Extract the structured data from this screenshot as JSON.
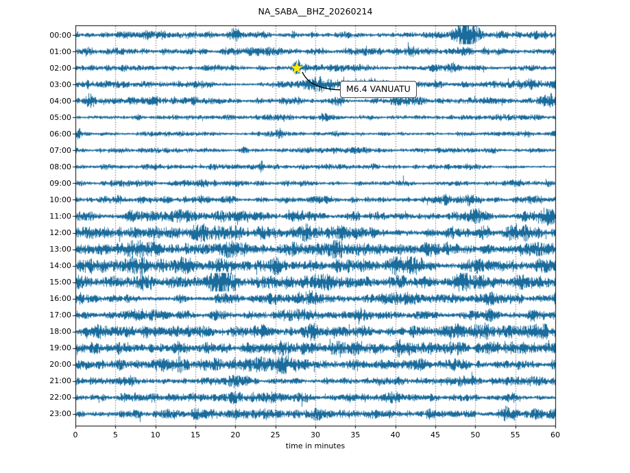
{
  "title": "NA_SABA__BHZ_20260214",
  "x_axis": {
    "label": "time in minutes",
    "ticks": [
      0,
      5,
      10,
      15,
      20,
      25,
      30,
      35,
      40,
      45,
      50,
      55,
      60
    ],
    "grid_minutes": [
      5,
      10,
      15,
      20,
      25,
      30,
      35,
      40,
      45,
      50,
      55
    ],
    "range": [
      0,
      60
    ]
  },
  "annotation": {
    "text": "M6.4 VANUATU",
    "row_hour": "02:00",
    "minute": 27.7,
    "marker": "star"
  },
  "colors": {
    "trace": "#1a6c9c",
    "grid": "#333333",
    "axis": "#000000",
    "star": "#ffe60a",
    "arrow": "#000000",
    "annotation_border": "#444444",
    "annotation_bg": "#ffffff",
    "text": "#000000"
  },
  "chart_data": {
    "type": "line",
    "subtype": "seismogram-dayplot",
    "title": "NA_SABA__BHZ_20260214",
    "station": "NA_SABA__BHZ",
    "date": "20260214",
    "xlabel": "time in minutes",
    "xlim": [
      0,
      60
    ],
    "x_ticks": [
      0,
      5,
      10,
      15,
      20,
      25,
      30,
      35,
      40,
      45,
      50,
      55,
      60
    ],
    "grid": "vertical-dotted",
    "y_axis_hour_labels": [
      "00:00",
      "01:00",
      "02:00",
      "03:00",
      "04:00",
      "05:00",
      "06:00",
      "07:00",
      "08:00",
      "09:00",
      "10:00",
      "11:00",
      "12:00",
      "13:00",
      "14:00",
      "15:00",
      "16:00",
      "17:00",
      "18:00",
      "19:00",
      "20:00",
      "21:00",
      "22:00",
      "23:00"
    ],
    "event": {
      "label": "M6.4 VANUATU",
      "row": "02:00",
      "minute": 27.7,
      "marker": "star",
      "marker_color": "#ffe60a"
    },
    "amplitude_note": "base = background noise half-amplitude (relative units); bursts = [center_minute, sigma_minutes, extra_amplitude]",
    "rows": [
      {
        "hour": "00:00",
        "base": 1.15,
        "bursts": [
          [
            9,
            0.5,
            0.5
          ],
          [
            20,
            0.7,
            1.6
          ],
          [
            27,
            0.5,
            0.9
          ],
          [
            33,
            0.4,
            0.7
          ],
          [
            48.8,
            1.1,
            3.8
          ],
          [
            53.5,
            0.6,
            1.2
          ],
          [
            58,
            0.5,
            0.8
          ]
        ]
      },
      {
        "hour": "01:00",
        "base": 1.15,
        "bursts": [
          [
            1.5,
            0.5,
            1.0
          ],
          [
            11,
            0.4,
            0.8
          ],
          [
            25,
            0.5,
            0.6
          ],
          [
            42,
            0.5,
            0.8
          ],
          [
            48.5,
            0.9,
            2.0
          ],
          [
            51.5,
            0.5,
            1.4
          ]
        ]
      },
      {
        "hour": "02:00",
        "base": 1.0,
        "bursts": [
          [
            4,
            0.4,
            0.5
          ],
          [
            27.8,
            0.25,
            1.2
          ],
          [
            31,
            2.5,
            0.6
          ],
          [
            47,
            0.4,
            0.8
          ],
          [
            56,
            0.4,
            0.5
          ]
        ]
      },
      {
        "hour": "03:00",
        "base": 1.2,
        "bursts": [
          [
            2,
            0.4,
            0.5
          ],
          [
            13,
            0.4,
            0.5
          ],
          [
            30,
            1.2,
            1.2
          ],
          [
            35,
            3.0,
            1.0
          ],
          [
            50,
            0.4,
            0.6
          ],
          [
            56,
            0.8,
            0.8
          ]
        ]
      },
      {
        "hour": "04:00",
        "base": 1.15,
        "bursts": [
          [
            1.5,
            0.6,
            1.1
          ],
          [
            12,
            0.4,
            0.5
          ],
          [
            22,
            0.4,
            0.5
          ],
          [
            33,
            0.5,
            0.9
          ],
          [
            44,
            0.4,
            0.5
          ],
          [
            59,
            0.8,
            1.1
          ]
        ]
      },
      {
        "hour": "05:00",
        "base": 0.9,
        "bursts": [
          [
            8,
            0.4,
            0.4
          ],
          [
            18,
            0.3,
            0.4
          ],
          [
            31,
            0.4,
            0.4
          ],
          [
            43,
            0.3,
            0.4
          ],
          [
            54,
            0.3,
            0.4
          ]
        ]
      },
      {
        "hour": "06:00",
        "base": 0.9,
        "bursts": [
          [
            0.4,
            0.3,
            1.8
          ],
          [
            13,
            0.3,
            0.4
          ],
          [
            25.5,
            0.25,
            1.3
          ],
          [
            38,
            0.3,
            0.4
          ],
          [
            57,
            0.4,
            0.7
          ]
        ]
      },
      {
        "hour": "07:00",
        "base": 0.9,
        "bursts": [
          [
            6,
            0.3,
            0.4
          ],
          [
            21,
            0.3,
            0.3
          ],
          [
            35,
            0.3,
            0.4
          ],
          [
            52,
            0.3,
            0.3
          ]
        ]
      },
      {
        "hour": "08:00",
        "base": 0.9,
        "bursts": [
          [
            10,
            0.3,
            0.3
          ],
          [
            23.3,
            0.2,
            1.5
          ],
          [
            37,
            0.3,
            0.3
          ],
          [
            49,
            0.3,
            0.3
          ]
        ]
      },
      {
        "hour": "09:00",
        "base": 1.0,
        "bursts": [
          [
            8,
            0.3,
            0.4
          ],
          [
            20,
            0.3,
            0.4
          ],
          [
            33,
            0.5,
            0.9
          ],
          [
            45,
            0.3,
            0.4
          ],
          [
            59,
            0.5,
            0.7
          ]
        ]
      },
      {
        "hour": "10:00",
        "base": 1.3,
        "bursts": [
          [
            5,
            0.5,
            0.6
          ],
          [
            15,
            0.4,
            0.4
          ],
          [
            28,
            0.4,
            0.4
          ],
          [
            40,
            0.4,
            0.5
          ],
          [
            49,
            1.2,
            0.8
          ],
          [
            57,
            0.5,
            0.6
          ]
        ]
      },
      {
        "hour": "11:00",
        "base": 1.8,
        "bursts": [
          [
            6,
            0.6,
            0.5
          ],
          [
            17,
            0.5,
            0.5
          ],
          [
            29,
            0.6,
            1.0
          ],
          [
            38,
            0.5,
            0.5
          ],
          [
            50,
            0.5,
            0.5
          ],
          [
            59,
            0.9,
            1.7
          ]
        ]
      },
      {
        "hour": "12:00",
        "base": 2.0,
        "bursts": [
          [
            5.5,
            1.2,
            0.9
          ],
          [
            16,
            0.5,
            0.5
          ],
          [
            29,
            0.6,
            0.7
          ],
          [
            41,
            0.5,
            0.5
          ],
          [
            51,
            0.5,
            0.5
          ],
          [
            56.5,
            0.9,
            0.9
          ]
        ]
      },
      {
        "hour": "13:00",
        "base": 2.2,
        "bursts": [
          [
            8,
            1.0,
            1.6
          ],
          [
            14,
            0.8,
            1.0
          ],
          [
            19,
            0.5,
            0.8
          ],
          [
            27,
            0.5,
            0.5
          ],
          [
            33,
            0.7,
            1.0
          ],
          [
            40,
            0.5,
            0.5
          ],
          [
            47,
            0.6,
            0.8
          ],
          [
            55,
            0.5,
            0.5
          ]
        ]
      },
      {
        "hour": "14:00",
        "base": 2.2,
        "bursts": [
          [
            2,
            0.5,
            0.6
          ],
          [
            8,
            0.7,
            1.0
          ],
          [
            14,
            0.6,
            1.0
          ],
          [
            24.5,
            1.1,
            1.3
          ],
          [
            33,
            0.5,
            0.5
          ],
          [
            40,
            1.0,
            1.3
          ],
          [
            48,
            0.5,
            0.5
          ],
          [
            59,
            0.8,
            1.0
          ]
        ]
      },
      {
        "hour": "15:00",
        "base": 2.1,
        "bursts": [
          [
            4,
            0.5,
            0.5
          ],
          [
            9,
            0.7,
            1.0
          ],
          [
            18,
            0.9,
            1.0
          ],
          [
            30,
            0.6,
            0.8
          ],
          [
            40,
            0.7,
            1.0
          ],
          [
            48,
            0.6,
            0.6
          ],
          [
            56,
            0.5,
            0.5
          ]
        ]
      },
      {
        "hour": "16:00",
        "base": 1.8,
        "bursts": [
          [
            6,
            0.5,
            0.4
          ],
          [
            18,
            0.6,
            0.6
          ],
          [
            29,
            0.8,
            0.8
          ],
          [
            38,
            0.5,
            0.4
          ],
          [
            47,
            0.5,
            0.4
          ],
          [
            55,
            0.6,
            0.6
          ]
        ]
      },
      {
        "hour": "17:00",
        "base": 1.8,
        "bursts": [
          [
            4,
            0.5,
            0.5
          ],
          [
            13.5,
            0.7,
            1.2
          ],
          [
            27.8,
            0.8,
            1.4
          ],
          [
            36,
            0.5,
            0.5
          ],
          [
            44,
            0.5,
            0.5
          ],
          [
            51,
            0.7,
            0.7
          ],
          [
            58,
            0.5,
            0.5
          ]
        ]
      },
      {
        "hour": "18:00",
        "base": 2.0,
        "bursts": [
          [
            3,
            0.5,
            0.5
          ],
          [
            14,
            1.0,
            1.7
          ],
          [
            24,
            0.5,
            0.5
          ],
          [
            30,
            1.2,
            1.2
          ],
          [
            40,
            0.5,
            0.5
          ],
          [
            48,
            0.5,
            0.5
          ],
          [
            58,
            0.7,
            1.0
          ]
        ]
      },
      {
        "hour": "19:00",
        "base": 2.1,
        "bursts": [
          [
            6,
            0.5,
            0.5
          ],
          [
            12,
            0.9,
            1.2
          ],
          [
            19,
            0.5,
            0.5
          ],
          [
            26,
            0.9,
            1.2
          ],
          [
            33,
            0.6,
            0.8
          ],
          [
            41,
            0.5,
            0.5
          ],
          [
            47,
            0.8,
            1.1
          ],
          [
            55,
            0.7,
            0.9
          ]
        ]
      },
      {
        "hour": "20:00",
        "base": 1.8,
        "bursts": [
          [
            5,
            0.5,
            0.4
          ],
          [
            13.5,
            0.6,
            0.9
          ],
          [
            26.5,
            1.0,
            1.1
          ],
          [
            35,
            0.5,
            0.4
          ],
          [
            43,
            0.5,
            0.4
          ],
          [
            48,
            0.6,
            0.6
          ],
          [
            55,
            0.6,
            0.7
          ]
        ]
      },
      {
        "hour": "21:00",
        "base": 1.4,
        "bursts": [
          [
            7,
            0.4,
            0.4
          ],
          [
            20,
            0.5,
            0.7
          ],
          [
            32,
            1.5,
            0.5
          ],
          [
            41,
            0.4,
            0.4
          ],
          [
            48,
            0.5,
            0.5
          ],
          [
            57,
            0.4,
            0.4
          ]
        ]
      },
      {
        "hour": "22:00",
        "base": 1.4,
        "bursts": [
          [
            6,
            0.4,
            0.4
          ],
          [
            14,
            0.4,
            0.4
          ],
          [
            20,
            0.5,
            0.5
          ],
          [
            29,
            0.4,
            0.4
          ],
          [
            40,
            0.4,
            0.5
          ],
          [
            47,
            0.4,
            0.4
          ],
          [
            54.5,
            1.0,
            1.5
          ],
          [
            58,
            0.5,
            0.7
          ]
        ]
      },
      {
        "hour": "23:00",
        "base": 1.5,
        "bursts": [
          [
            3,
            0.4,
            0.7
          ],
          [
            12,
            0.5,
            0.6
          ],
          [
            22,
            1.3,
            0.9
          ],
          [
            30,
            0.5,
            0.6
          ],
          [
            37,
            0.4,
            0.5
          ],
          [
            42,
            0.5,
            0.6
          ],
          [
            48,
            0.4,
            0.4
          ],
          [
            54,
            1.0,
            1.4
          ],
          [
            58,
            0.5,
            0.5
          ]
        ]
      }
    ]
  }
}
